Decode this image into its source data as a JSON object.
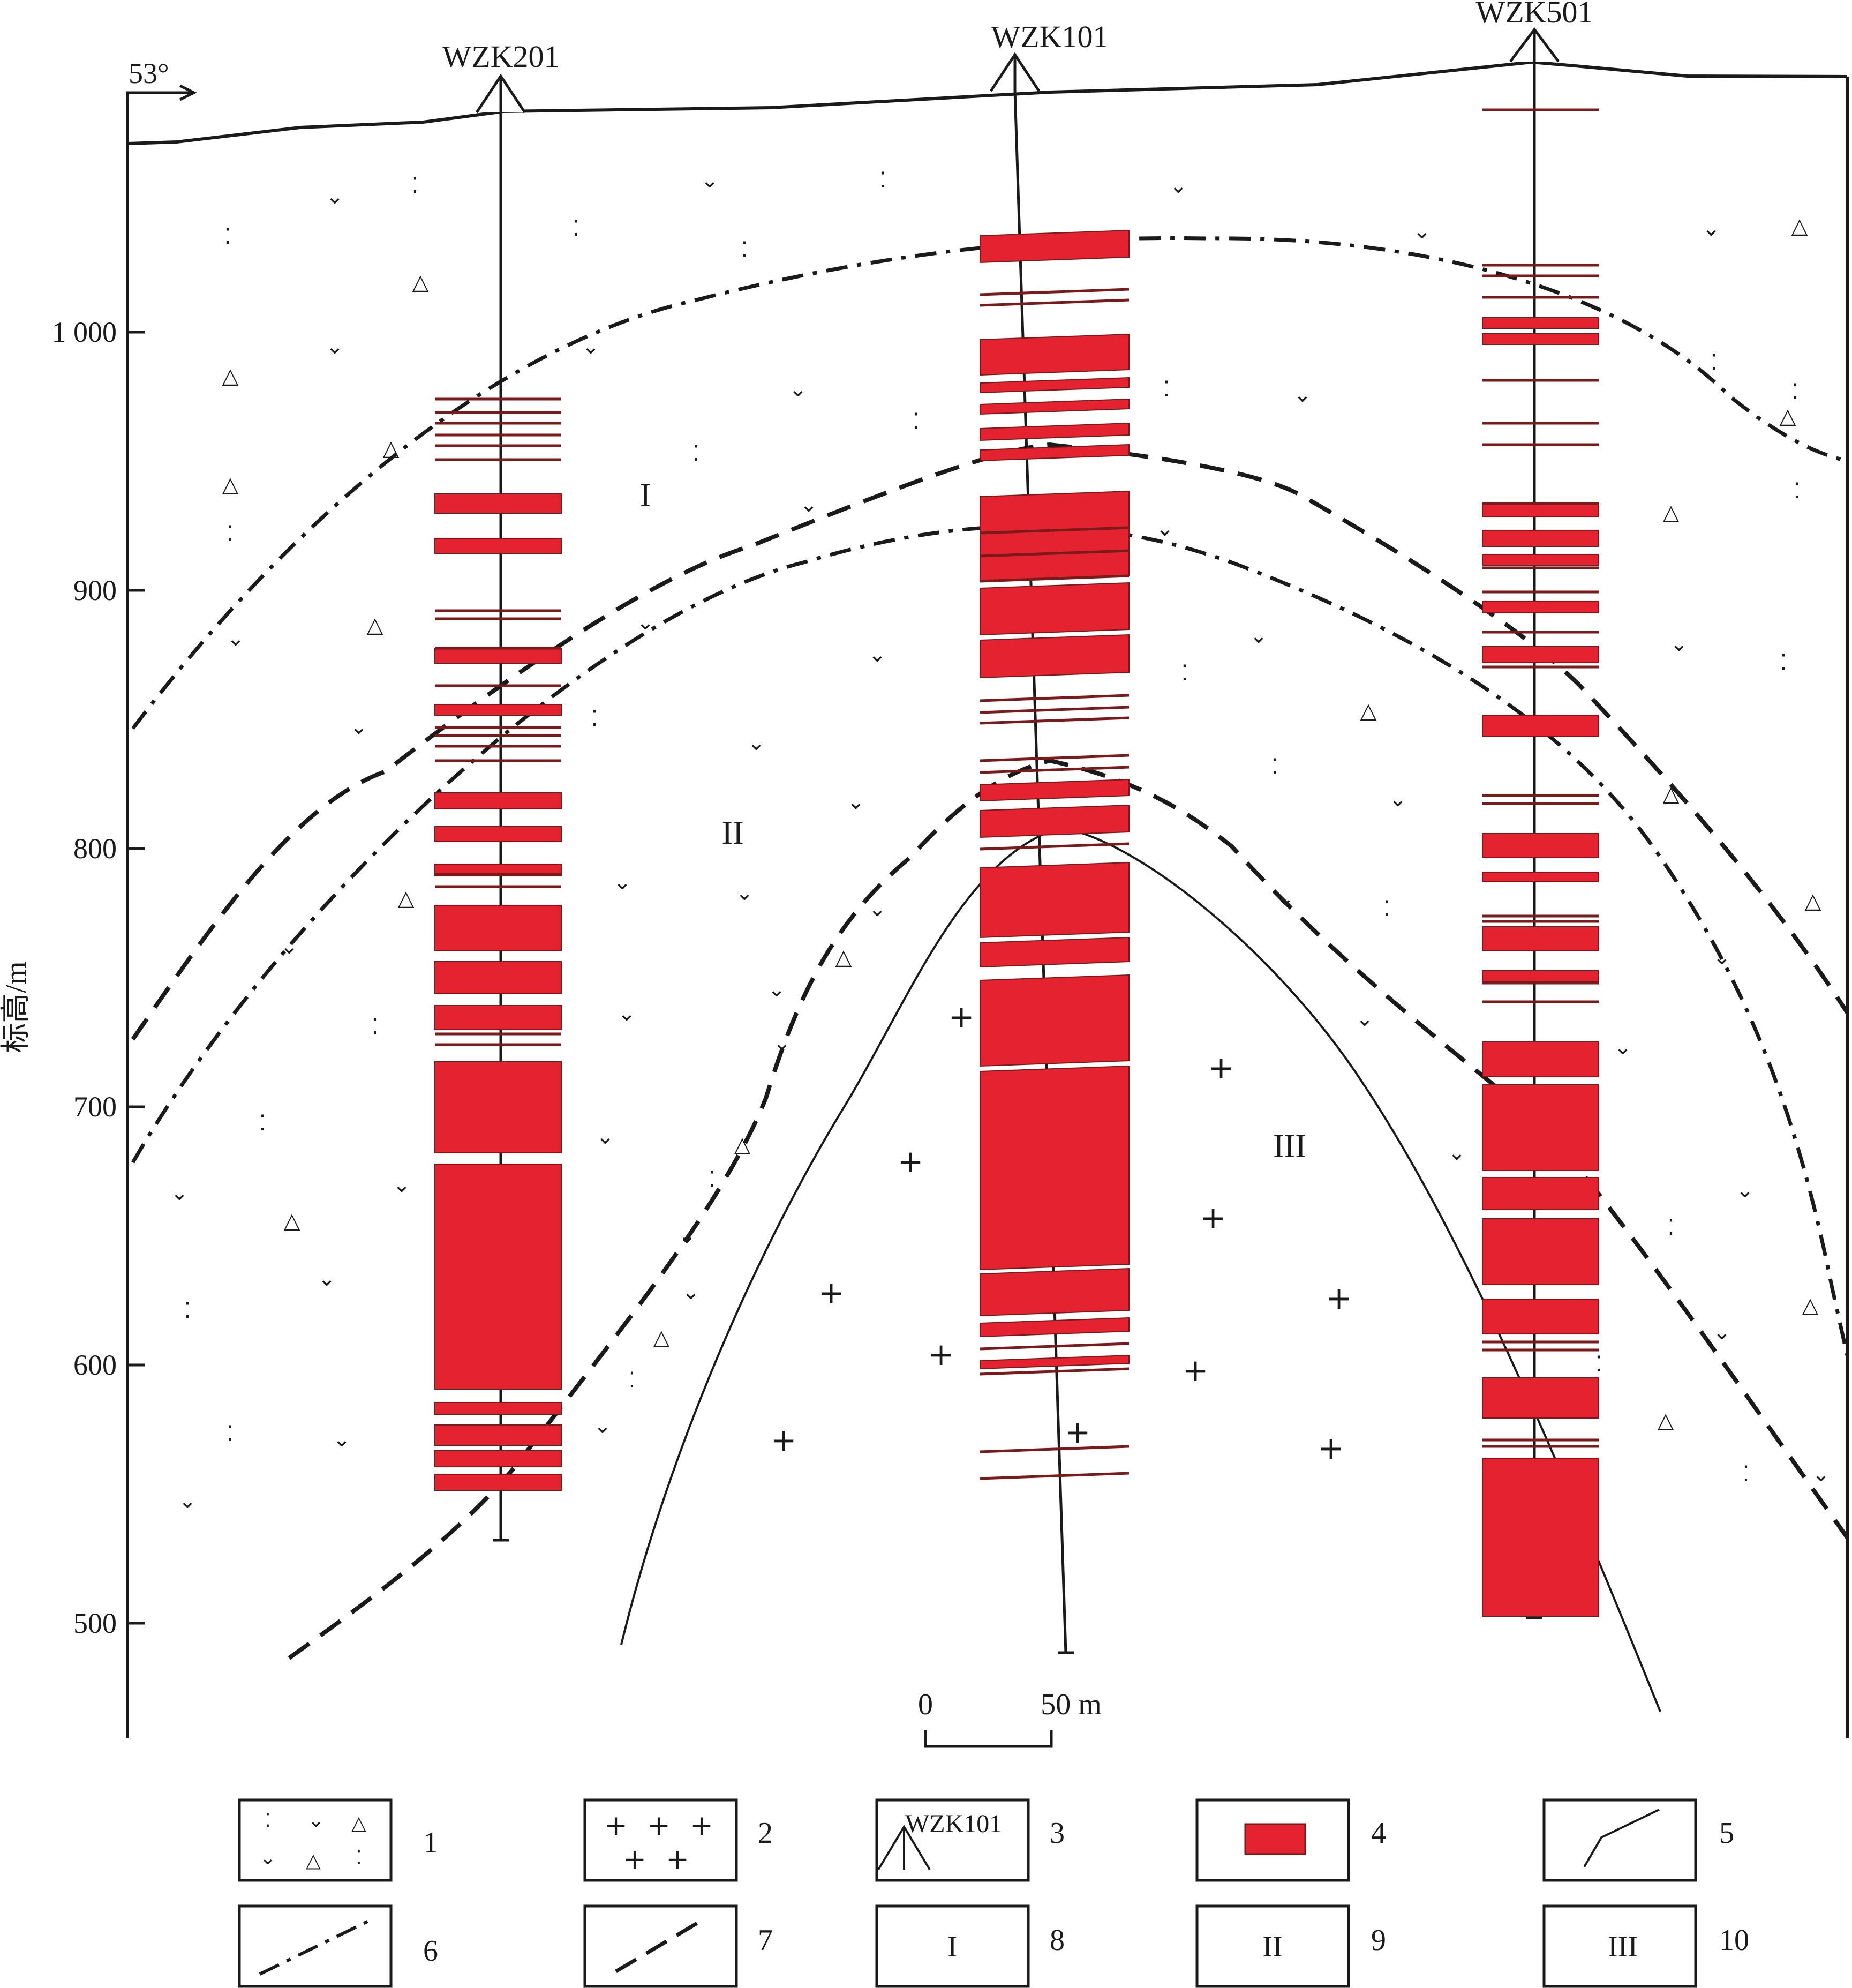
{
  "orientation_label": "53°",
  "axis": {
    "ylabel": "标高/m",
    "ticks": [
      {
        "value": 1000,
        "label": "1 000"
      },
      {
        "value": 900,
        "label": "900"
      },
      {
        "value": 800,
        "label": "800"
      },
      {
        "value": 700,
        "label": "700"
      },
      {
        "value": 600,
        "label": "600"
      },
      {
        "value": 500,
        "label": "500"
      }
    ]
  },
  "boreholes": [
    {
      "id": "wzk201",
      "name": "WZK201"
    },
    {
      "id": "wzk101",
      "name": "WZK101"
    },
    {
      "id": "wzk501",
      "name": "WZK501"
    }
  ],
  "zones": [
    "I",
    "II",
    "III"
  ],
  "scale_bar": {
    "start": "0",
    "end": "50 m"
  },
  "legend": [
    {
      "num": "1",
      "symbol": "volcanic-tuff-pattern",
      "text": ""
    },
    {
      "num": "2",
      "symbol": "granite-cross-pattern",
      "text": ""
    },
    {
      "num": "3",
      "symbol": "drillhole-marker",
      "text": "WZK101"
    },
    {
      "num": "4",
      "symbol": "orebody-fill",
      "text": ""
    },
    {
      "num": "5",
      "symbol": "solid-boundary-line",
      "text": ""
    },
    {
      "num": "6",
      "symbol": "dash-dot-line",
      "text": ""
    },
    {
      "num": "7",
      "symbol": "dashed-line",
      "text": ""
    },
    {
      "num": "8",
      "symbol": "zone-label",
      "text": "I"
    },
    {
      "num": "9",
      "symbol": "zone-label",
      "text": "II"
    },
    {
      "num": "10",
      "symbol": "zone-label",
      "text": "III"
    }
  ],
  "colors": {
    "orebody": "#e52230",
    "seam": "#7a1a1a",
    "line": "#1a1a1a"
  }
}
